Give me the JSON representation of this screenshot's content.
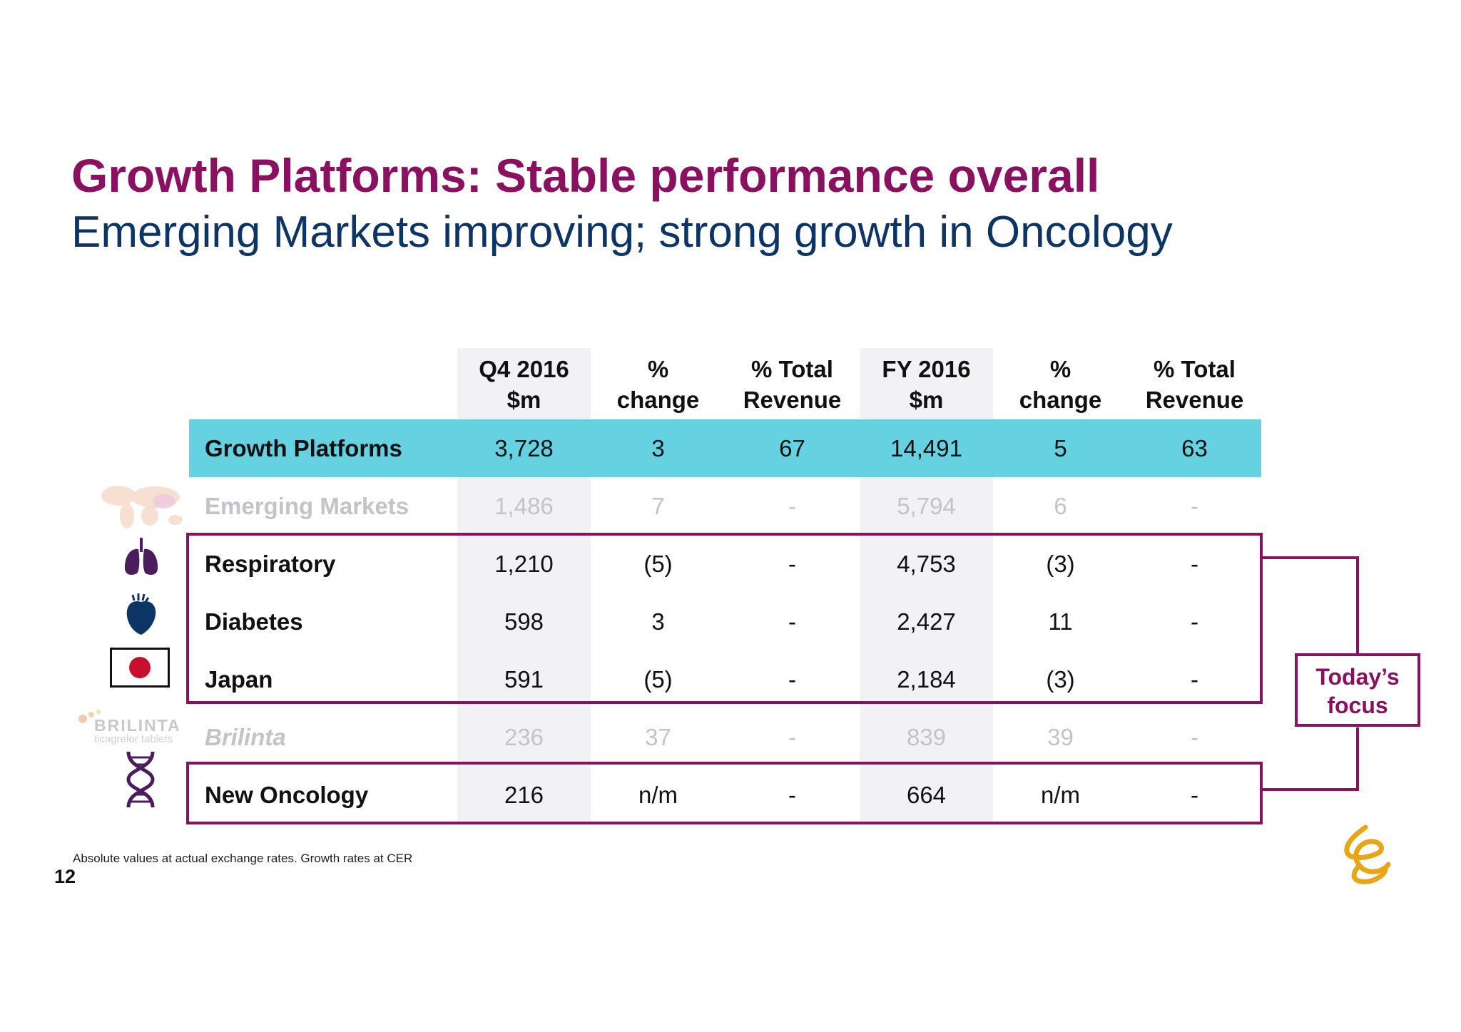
{
  "title": "Growth Platforms: Stable performance overall",
  "subtitle": "Emerging Markets improving; strong growth in Oncology",
  "table": {
    "headers": [
      [
        "Q4 2016",
        "$m"
      ],
      [
        "%",
        "change"
      ],
      [
        "% Total",
        "Revenue"
      ],
      [
        "FY 2016",
        "$m"
      ],
      [
        "%",
        "change"
      ],
      [
        "% Total",
        "Revenue"
      ]
    ],
    "rows": [
      {
        "label": "Growth Platforms",
        "values": [
          "3,728",
          "3",
          "67",
          "14,491",
          "5",
          "63"
        ]
      },
      {
        "label": "Emerging Markets",
        "values": [
          "1,486",
          "7",
          "-",
          "5,794",
          "6",
          "-"
        ]
      },
      {
        "label": "Respiratory",
        "values": [
          "1,210",
          "(5)",
          "-",
          "4,753",
          "(3)",
          "-"
        ]
      },
      {
        "label": "Diabetes",
        "values": [
          "598",
          "3",
          "-",
          "2,427",
          "11",
          "-"
        ]
      },
      {
        "label": "Japan",
        "values": [
          "591",
          "(5)",
          "-",
          "2,184",
          "(3)",
          "-"
        ]
      },
      {
        "label": "Brilinta",
        "values": [
          "236",
          "37",
          "-",
          "839",
          "39",
          "-"
        ]
      },
      {
        "label": "New Oncology",
        "values": [
          "216",
          "n/m",
          "-",
          "664",
          "n/m",
          "-"
        ]
      }
    ]
  },
  "focus": {
    "line1": "Today’s",
    "line2": "focus"
  },
  "brand": {
    "word": "BRILINTA",
    "sub": "ticagrelor tablets"
  },
  "footnote": "Absolute values at actual exchange rates. Growth rates at CER",
  "page_number": "12",
  "colors": {
    "title": "#8a1060",
    "subtitle": "#0c3566",
    "highlight_row": "#66d1e0",
    "box": "#8a1060",
    "logo": "#e8a516"
  }
}
